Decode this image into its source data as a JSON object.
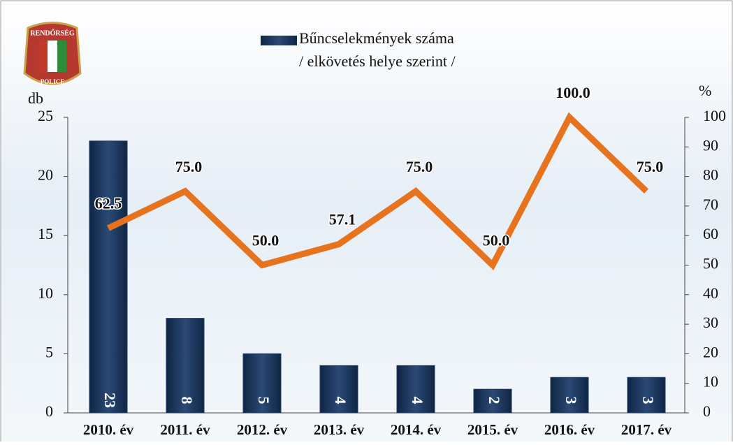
{
  "chart_data": {
    "type": "bar_line",
    "logo": {
      "top": "RENDŐRSÉG",
      "bottom": "POLICE"
    },
    "legend_note": "/ elkövetés helye szerint /",
    "ylabel": "db",
    "y2label": "%",
    "categories": [
      "2010. év",
      "2011. év",
      "2012. év",
      "2013. év",
      "2014. év",
      "2015. év",
      "2016. év",
      "2017. év"
    ],
    "series": [
      {
        "name": "Bűncselekmények száma",
        "type": "bar",
        "color": "#1f3a5f",
        "values": [
          23,
          8,
          5,
          4,
          4,
          2,
          3,
          3
        ]
      },
      {
        "type": "line",
        "axis": "y2",
        "color": "#e8731f",
        "values": [
          62.5,
          75,
          50,
          57.1,
          75,
          50,
          100,
          75
        ],
        "value_labels": [
          "62.5",
          "75.0",
          "50.0",
          "57.1",
          "75.0",
          "50.0",
          "100.0",
          "75.0"
        ]
      }
    ],
    "ylim": [
      0,
      25
    ],
    "yticks": [
      0,
      5,
      10,
      15,
      20,
      25
    ],
    "y2lim": [
      0,
      100
    ],
    "y2ticks": [
      0,
      10,
      20,
      30,
      40,
      50,
      60,
      70,
      80,
      90,
      100
    ]
  }
}
